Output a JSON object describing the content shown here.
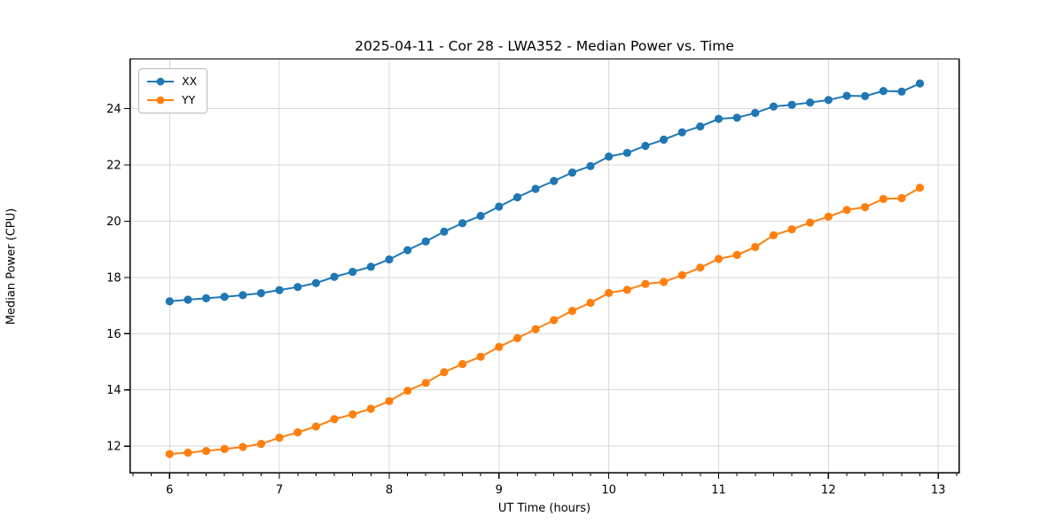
{
  "figure": {
    "background": "#ffffff"
  },
  "colors": {
    "grid": "#d9d9d9",
    "spine": "#000000",
    "text": "#000000",
    "series_blue": "#1f77b4",
    "series_orange": "#ff7f0e"
  },
  "chart_data": {
    "type": "line",
    "title": "2025-04-11 - Cor 28 - LWA352 - Median Power vs. Time",
    "xlabel": "UT Time (hours)",
    "ylabel": "Median Power (CPU)",
    "xlim": [
      5.64,
      13.19
    ],
    "ylim": [
      11.05,
      25.77
    ],
    "xticks": [
      6,
      7,
      8,
      9,
      10,
      11,
      12,
      13
    ],
    "yticks": [
      12,
      14,
      16,
      18,
      20,
      22,
      24
    ],
    "x_minor_tick_step": 0.1667,
    "grid": true,
    "legend_position": "upper left",
    "marker": "o",
    "x": [
      6.0,
      6.167,
      6.333,
      6.5,
      6.667,
      6.833,
      7.0,
      7.167,
      7.333,
      7.5,
      7.667,
      7.833,
      8.0,
      8.167,
      8.333,
      8.5,
      8.667,
      8.833,
      9.0,
      9.167,
      9.333,
      9.5,
      9.667,
      9.833,
      10.0,
      10.167,
      10.333,
      10.5,
      10.667,
      10.833,
      11.0,
      11.167,
      11.333,
      11.5,
      11.667,
      11.833,
      12.0,
      12.167,
      12.333,
      12.5,
      12.667,
      12.833
    ],
    "series": [
      {
        "name": "XX",
        "color": "#1f77b4",
        "values": [
          17.15,
          17.21,
          17.26,
          17.31,
          17.37,
          17.44,
          17.55,
          17.66,
          17.8,
          18.02,
          18.2,
          18.38,
          18.64,
          18.97,
          19.28,
          19.63,
          19.93,
          20.19,
          20.52,
          20.85,
          21.15,
          21.43,
          21.73,
          21.96,
          22.3,
          22.43,
          22.68,
          22.9,
          23.16,
          23.37,
          23.64,
          23.68,
          23.85,
          24.08,
          24.14,
          24.22,
          24.31,
          24.46,
          24.45,
          24.63,
          24.61,
          24.9
        ]
      },
      {
        "name": "YY",
        "color": "#ff7f0e",
        "values": [
          11.72,
          11.77,
          11.83,
          11.9,
          11.97,
          12.08,
          12.3,
          12.49,
          12.7,
          12.96,
          13.13,
          13.33,
          13.6,
          13.97,
          14.25,
          14.63,
          14.92,
          15.18,
          15.53,
          15.84,
          16.16,
          16.48,
          16.81,
          17.1,
          17.45,
          17.56,
          17.77,
          17.84,
          18.08,
          18.35,
          18.66,
          18.8,
          19.08,
          19.5,
          19.71,
          19.95,
          20.16,
          20.4,
          20.5,
          20.79,
          20.82,
          21.19
        ]
      }
    ]
  }
}
